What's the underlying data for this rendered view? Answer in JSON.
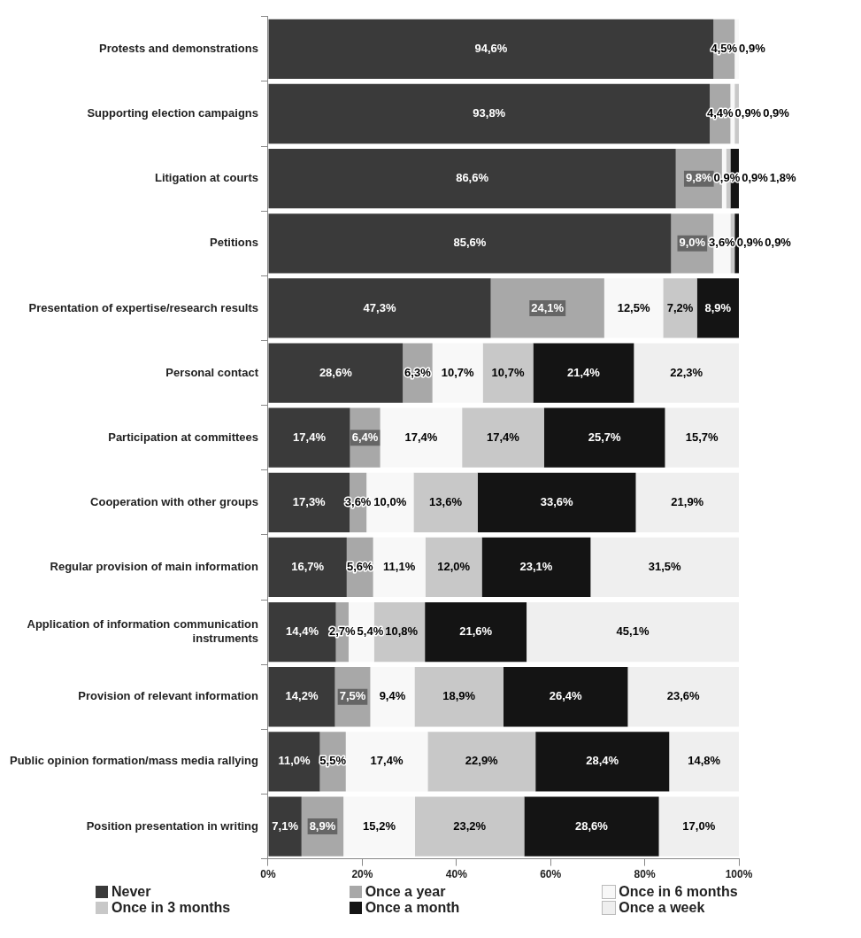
{
  "chart_data": {
    "type": "bar",
    "orientation": "horizontal",
    "stacked": true,
    "categories": [
      "Protests and demonstrations",
      "Supporting election campaigns",
      "Litigation at courts",
      "Petitions",
      "Presentation of expertise/research results",
      "Personal contact",
      "Participation at committees",
      "Cooperation with other groups",
      "Regular provision of main information",
      "Application of information communication instruments",
      "Provision of relevant information",
      "Public opinion formation/mass media rallying",
      "Position presentation in writing"
    ],
    "series": [
      {
        "name": "Never",
        "color": "#3a3a3a",
        "values": [
          94.6,
          93.8,
          86.6,
          85.6,
          47.3,
          28.6,
          17.4,
          17.3,
          16.7,
          14.4,
          14.2,
          11.0,
          7.1
        ],
        "value_labels": [
          "94,6%",
          "93,8%",
          "86,6%",
          "85,6%",
          "47,3%",
          "28,6%",
          "17,4%",
          "17,3%",
          "16,7%",
          "14,4%",
          "14,2%",
          "11,0%",
          "7,1%"
        ]
      },
      {
        "name": "Once a year",
        "color": "#a8a8a8",
        "values": [
          4.5,
          4.4,
          9.8,
          9.0,
          24.1,
          6.3,
          6.4,
          3.6,
          5.6,
          2.7,
          7.5,
          5.5,
          8.9
        ],
        "value_labels": [
          "4,5%",
          "4,4%",
          "9,8%",
          "9,0%",
          "24,1%",
          "6,3%",
          "6,4%",
          "3,6%",
          "5,6%",
          "2,7%",
          "7,5%",
          "5,5%",
          "8,9%"
        ]
      },
      {
        "name": "Once in 6 months",
        "color": "#f8f8f8",
        "values": [
          0.9,
          0.9,
          0.9,
          3.6,
          12.5,
          10.7,
          17.4,
          10.0,
          11.1,
          5.4,
          9.4,
          17.4,
          15.2
        ],
        "value_labels": [
          "0,9%",
          "0,9%",
          "0,9%",
          "3,6%",
          "12,5%",
          "10,7%",
          "17,4%",
          "10,0%",
          "11,1%",
          "5,4%",
          "9,4%",
          "17,4%",
          "15,2%"
        ]
      },
      {
        "name": "Once in 3 months",
        "color": "#c8c8c8",
        "values": [
          null,
          0.9,
          0.9,
          0.9,
          7.2,
          10.7,
          17.4,
          13.6,
          12.0,
          10.8,
          18.9,
          22.9,
          23.2
        ],
        "value_labels": [
          null,
          "0,9%",
          "0,9%",
          "0,9%",
          "7,2%",
          "10,7%",
          "17,4%",
          "13,6%",
          "12,0%",
          "10,8%",
          "18,9%",
          "22,9%",
          "23,2%"
        ]
      },
      {
        "name": "Once a month",
        "color": "#141414",
        "values": [
          null,
          null,
          1.8,
          0.9,
          8.9,
          21.4,
          25.7,
          33.6,
          23.1,
          21.6,
          26.4,
          28.4,
          28.6
        ],
        "value_labels": [
          null,
          null,
          "1,8%",
          "0,9%",
          "8,9%",
          "21,4%",
          "25,7%",
          "33,6%",
          "23,1%",
          "21,6%",
          "26,4%",
          "28,4%",
          "28,6%"
        ]
      },
      {
        "name": "Once a week",
        "color": "#efefef",
        "values": [
          null,
          null,
          null,
          null,
          null,
          22.3,
          15.7,
          21.9,
          31.5,
          45.1,
          23.6,
          14.8,
          17.0
        ],
        "value_labels": [
          null,
          null,
          null,
          null,
          null,
          "22,3%",
          "15,7%",
          "21,9%",
          "31,5%",
          "45,1%",
          "23,6%",
          "14,8%",
          "17,0%"
        ]
      }
    ],
    "xlim": [
      0,
      100
    ],
    "xticks": [
      {
        "value": 0,
        "label": "0%"
      },
      {
        "value": 20,
        "label": "20%"
      },
      {
        "value": 40,
        "label": "40%"
      },
      {
        "value": 60,
        "label": "60%"
      },
      {
        "value": 80,
        "label": "80%"
      },
      {
        "value": 100,
        "label": "100%"
      }
    ],
    "grid": false,
    "legend": "bottom"
  }
}
